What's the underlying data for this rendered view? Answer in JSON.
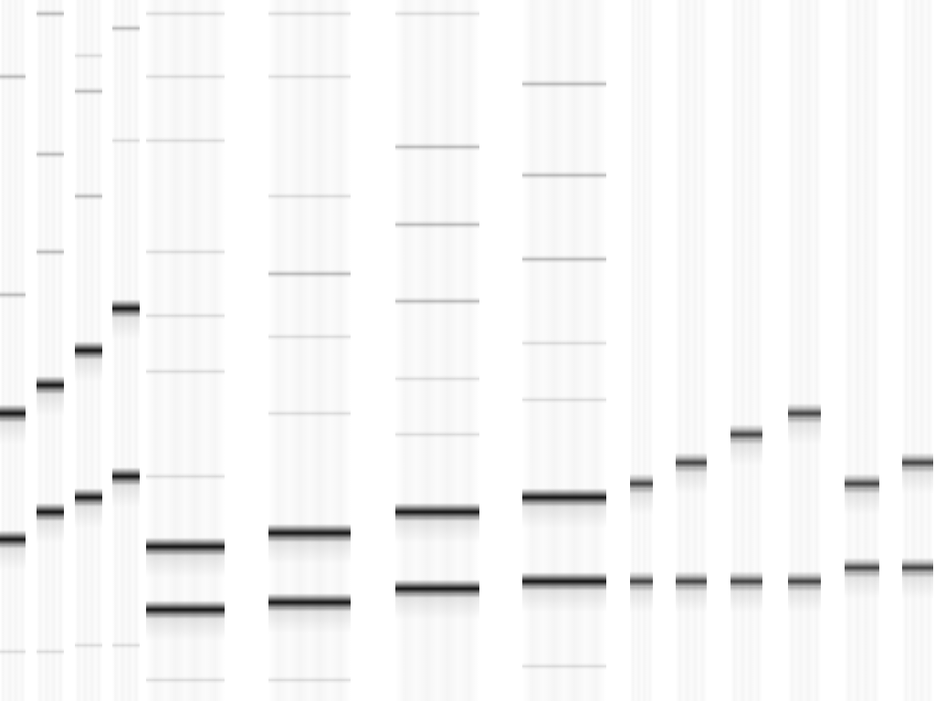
{
  "image": {
    "description_type": "electrophoresis-gel",
    "background_color": "#ffffff",
    "band_color": "#111111"
  },
  "lanes": [
    {
      "id": 1,
      "bands": [
        {
          "level": 0.11,
          "strength": "faint"
        },
        {
          "level": 0.42,
          "strength": "faint"
        },
        {
          "level": 0.59,
          "strength": "major"
        },
        {
          "level": 0.77,
          "strength": "major"
        },
        {
          "level": 0.93,
          "strength": "ghost"
        }
      ]
    },
    {
      "id": 2,
      "bands": [
        {
          "level": 0.02,
          "strength": "faint"
        },
        {
          "level": 0.22,
          "strength": "faint"
        },
        {
          "level": 0.36,
          "strength": "faint"
        },
        {
          "level": 0.55,
          "strength": "major"
        },
        {
          "level": 0.73,
          "strength": "major"
        },
        {
          "level": 0.93,
          "strength": "ghost"
        }
      ]
    },
    {
      "id": 3,
      "bands": [
        {
          "level": 0.08,
          "strength": "ghost"
        },
        {
          "level": 0.13,
          "strength": "faint"
        },
        {
          "level": 0.28,
          "strength": "faint"
        },
        {
          "level": 0.5,
          "strength": "major"
        },
        {
          "level": 0.71,
          "strength": "major"
        },
        {
          "level": 0.92,
          "strength": "ghost"
        }
      ]
    },
    {
      "id": 4,
      "bands": [
        {
          "level": 0.04,
          "strength": "faint"
        },
        {
          "level": 0.2,
          "strength": "ghost"
        },
        {
          "level": 0.44,
          "strength": "major"
        },
        {
          "level": 0.68,
          "strength": "major"
        },
        {
          "level": 0.92,
          "strength": "ghost"
        }
      ]
    },
    {
      "id": 5,
      "bands": [
        {
          "level": 0.02,
          "strength": "ghost"
        },
        {
          "level": 0.11,
          "strength": "ghost"
        },
        {
          "level": 0.2,
          "strength": "ghost"
        },
        {
          "level": 0.36,
          "strength": "ghost"
        },
        {
          "level": 0.45,
          "strength": "ghost"
        },
        {
          "level": 0.53,
          "strength": "ghost"
        },
        {
          "level": 0.68,
          "strength": "ghost"
        },
        {
          "level": 0.78,
          "strength": "major"
        },
        {
          "level": 0.87,
          "strength": "major"
        },
        {
          "level": 0.97,
          "strength": "ghost"
        }
      ]
    },
    {
      "id": 6,
      "bands": [
        {
          "level": 0.02,
          "strength": "ghost"
        },
        {
          "level": 0.11,
          "strength": "ghost"
        },
        {
          "level": 0.28,
          "strength": "ghost"
        },
        {
          "level": 0.39,
          "strength": "faint"
        },
        {
          "level": 0.48,
          "strength": "ghost"
        },
        {
          "level": 0.59,
          "strength": "ghost"
        },
        {
          "level": 0.76,
          "strength": "major"
        },
        {
          "level": 0.86,
          "strength": "major"
        },
        {
          "level": 0.97,
          "strength": "ghost"
        }
      ]
    },
    {
      "id": 7,
      "bands": [
        {
          "level": 0.02,
          "strength": "ghost"
        },
        {
          "level": 0.21,
          "strength": "faint"
        },
        {
          "level": 0.32,
          "strength": "faint"
        },
        {
          "level": 0.43,
          "strength": "faint"
        },
        {
          "level": 0.54,
          "strength": "ghost"
        },
        {
          "level": 0.62,
          "strength": "ghost"
        },
        {
          "level": 0.73,
          "strength": "major"
        },
        {
          "level": 0.84,
          "strength": "major"
        }
      ]
    },
    {
      "id": 8,
      "bands": [
        {
          "level": 0.12,
          "strength": "faint"
        },
        {
          "level": 0.25,
          "strength": "faint"
        },
        {
          "level": 0.37,
          "strength": "faint"
        },
        {
          "level": 0.49,
          "strength": "ghost"
        },
        {
          "level": 0.57,
          "strength": "ghost"
        },
        {
          "level": 0.71,
          "strength": "major"
        },
        {
          "level": 0.83,
          "strength": "major"
        },
        {
          "level": 0.95,
          "strength": "ghost"
        }
      ]
    },
    {
      "id": 9,
      "bands": [
        {
          "level": 0.69,
          "strength": "medium"
        },
        {
          "level": 0.83,
          "strength": "medium"
        }
      ]
    },
    {
      "id": 10,
      "bands": [
        {
          "level": 0.66,
          "strength": "medium"
        },
        {
          "level": 0.83,
          "strength": "medium"
        }
      ]
    },
    {
      "id": 11,
      "bands": [
        {
          "level": 0.62,
          "strength": "medium"
        },
        {
          "level": 0.83,
          "strength": "medium"
        }
      ]
    },
    {
      "id": 12,
      "bands": [
        {
          "level": 0.59,
          "strength": "medium"
        },
        {
          "level": 0.83,
          "strength": "medium"
        }
      ]
    },
    {
      "id": 13,
      "bands": [
        {
          "level": 0.69,
          "strength": "medium"
        },
        {
          "level": 0.81,
          "strength": "medium"
        }
      ]
    },
    {
      "id": 14,
      "bands": [
        {
          "level": 0.66,
          "strength": "medium"
        },
        {
          "level": 0.81,
          "strength": "medium"
        }
      ]
    }
  ]
}
